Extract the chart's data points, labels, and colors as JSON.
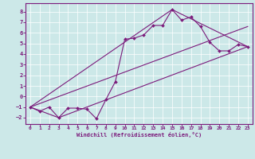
{
  "xlabel": "Windchill (Refroidissement éolien,°C)",
  "background_color": "#cce8e8",
  "line_color": "#7b1a7b",
  "xlim": [
    -0.5,
    23.5
  ],
  "ylim": [
    -2.6,
    8.8
  ],
  "xticks": [
    0,
    1,
    2,
    3,
    4,
    5,
    6,
    7,
    8,
    9,
    10,
    11,
    12,
    13,
    14,
    15,
    16,
    17,
    18,
    19,
    20,
    21,
    22,
    23
  ],
  "yticks": [
    -2,
    -1,
    0,
    1,
    2,
    3,
    4,
    5,
    6,
    7,
    8
  ],
  "series": [
    {
      "x": [
        0,
        1,
        2,
        3,
        4,
        5,
        6,
        7,
        8,
        9,
        10,
        11,
        12,
        13,
        14,
        15,
        16,
        17,
        18,
        19,
        20,
        21,
        22,
        23
      ],
      "y": [
        -1.0,
        -1.4,
        -1.0,
        -2.0,
        -1.1,
        -1.1,
        -1.2,
        -2.1,
        -0.3,
        1.4,
        5.4,
        5.5,
        5.8,
        6.7,
        6.7,
        8.2,
        7.2,
        7.5,
        6.6,
        5.1,
        4.3,
        4.3,
        4.9,
        4.7
      ],
      "marker": true
    },
    {
      "x": [
        0,
        3,
        23
      ],
      "y": [
        -1.0,
        -2.0,
        4.7
      ],
      "marker": false
    },
    {
      "x": [
        0,
        15,
        23
      ],
      "y": [
        -1.0,
        8.2,
        4.7
      ],
      "marker": false
    },
    {
      "x": [
        0,
        23
      ],
      "y": [
        -1.0,
        6.6
      ],
      "marker": false
    }
  ]
}
